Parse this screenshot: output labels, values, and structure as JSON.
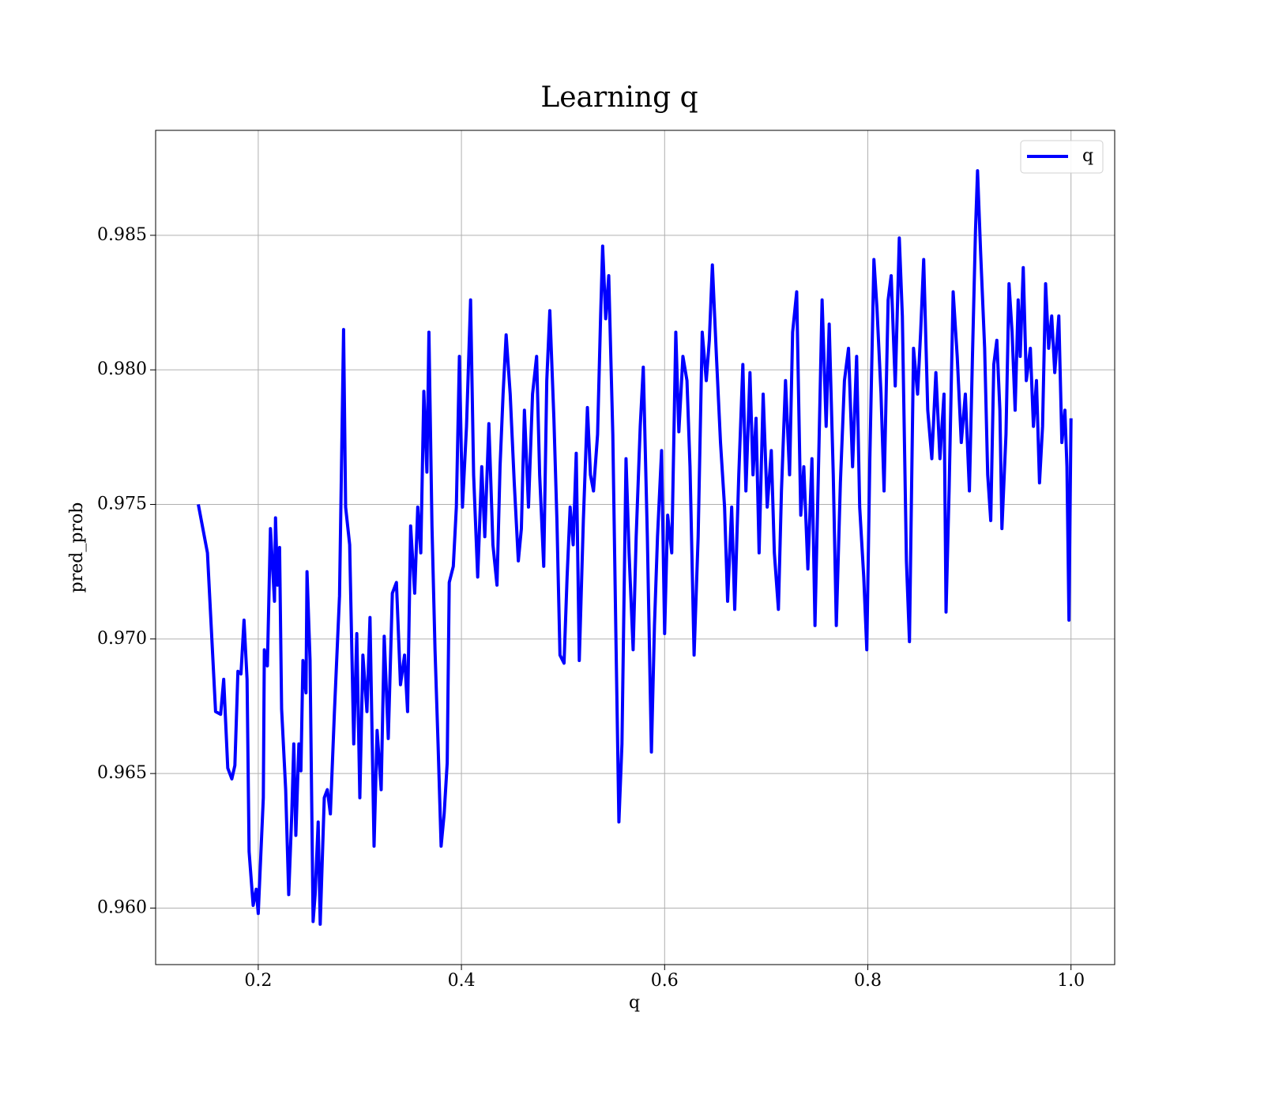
{
  "chart_data": {
    "type": "line",
    "title": "Learning q",
    "xlabel": "q",
    "ylabel": "pred_prob",
    "xlim": [
      0.099,
      1.043
    ],
    "ylim": [
      0.9579,
      0.9889
    ],
    "xticks": [
      0.2,
      0.4,
      0.6,
      0.8,
      {
        "value": 1,
        "label": "1.0"
      }
    ],
    "yticks": [
      {
        "value": 0.96,
        "label": "0.960"
      },
      0.965,
      {
        "value": 0.97,
        "label": "0.970"
      },
      0.975,
      {
        "value": 0.98,
        "label": "0.980"
      },
      0.985
    ],
    "grid": true,
    "legend": "upper right",
    "x": [
      0.141,
      0.15,
      0.158,
      0.163,
      0.166,
      0.17,
      0.174,
      0.177,
      0.18,
      0.183,
      0.186,
      0.189,
      0.191,
      0.195,
      0.198,
      0.2,
      0.205,
      0.206,
      0.209,
      0.212,
      0.216,
      0.217,
      0.219,
      0.221,
      0.223,
      0.227,
      0.23,
      0.233,
      0.235,
      0.237,
      0.24,
      0.242,
      0.244,
      0.247,
      0.248,
      0.251,
      0.254,
      0.256,
      0.259,
      0.261,
      0.265,
      0.268,
      0.271,
      0.275,
      0.28,
      0.284,
      0.286,
      0.29,
      0.294,
      0.297,
      0.3,
      0.303,
      0.307,
      0.31,
      0.314,
      0.317,
      0.321,
      0.324,
      0.328,
      0.332,
      0.336,
      0.34,
      0.344,
      0.347,
      0.35,
      0.354,
      0.357,
      0.36,
      0.363,
      0.366,
      0.368,
      0.371,
      0.374,
      0.377,
      0.38,
      0.383,
      0.386,
      0.388,
      0.392,
      0.395,
      0.398,
      0.401,
      0.405,
      0.409,
      0.412,
      0.416,
      0.42,
      0.423,
      0.427,
      0.431,
      0.435,
      0.438,
      0.441,
      0.444,
      0.448,
      0.452,
      0.456,
      0.459,
      0.462,
      0.466,
      0.47,
      0.474,
      0.477,
      0.481,
      0.484,
      0.487,
      0.491,
      0.494,
      0.497,
      0.501,
      0.504,
      0.507,
      0.51,
      0.513,
      0.516,
      0.52,
      0.524,
      0.527,
      0.53,
      0.534,
      0.537,
      0.539,
      0.542,
      0.545,
      0.549,
      0.552,
      0.555,
      0.558,
      0.562,
      0.565,
      0.569,
      0.572,
      0.576,
      0.579,
      0.583,
      0.587,
      0.59,
      0.593,
      0.597,
      0.6,
      0.603,
      0.607,
      0.611,
      0.614,
      0.618,
      0.622,
      0.625,
      0.629,
      0.633,
      0.637,
      0.641,
      0.644,
      0.647,
      0.651,
      0.655,
      0.659,
      0.662,
      0.666,
      0.669,
      0.673,
      0.677,
      0.68,
      0.684,
      0.687,
      0.69,
      0.693,
      0.697,
      0.701,
      0.705,
      0.708,
      0.712,
      0.715,
      0.719,
      0.723,
      0.726,
      0.73,
      0.734,
      0.737,
      0.741,
      0.745,
      0.748,
      0.752,
      0.755,
      0.759,
      0.762,
      0.766,
      0.769,
      0.773,
      0.777,
      0.781,
      0.785,
      0.789,
      0.792,
      0.796,
      0.799,
      0.802,
      0.806,
      0.809,
      0.813,
      0.816,
      0.82,
      0.823,
      0.827,
      0.831,
      0.834,
      0.838,
      0.841,
      0.845,
      0.849,
      0.852,
      0.855,
      0.859,
      0.863,
      0.867,
      0.871,
      0.875,
      0.877,
      0.88,
      0.884,
      0.888,
      0.892,
      0.896,
      0.9,
      0.903,
      0.906,
      0.908,
      0.911,
      0.915,
      0.918,
      0.921,
      0.924,
      0.927,
      0.93,
      0.932,
      0.936,
      0.939,
      0.942,
      0.945,
      0.948,
      0.95,
      0.953,
      0.956,
      0.96,
      0.963,
      0.966,
      0.969,
      0.972,
      0.975,
      0.978,
      0.981,
      0.984,
      0.988,
      0.991,
      0.994,
      0.996,
      0.998,
      1.0
    ],
    "series": [
      {
        "name": "q",
        "color": "#0000ff",
        "values": [
          0.975,
          0.9732,
          0.9673,
          0.9672,
          0.9685,
          0.9652,
          0.9648,
          0.9653,
          0.9688,
          0.9687,
          0.9707,
          0.9685,
          0.9621,
          0.9601,
          0.9607,
          0.9598,
          0.9641,
          0.9696,
          0.969,
          0.9741,
          0.9714,
          0.9745,
          0.972,
          0.9734,
          0.9674,
          0.9644,
          0.9605,
          0.9635,
          0.9661,
          0.9627,
          0.9661,
          0.9651,
          0.9692,
          0.968,
          0.9725,
          0.9692,
          0.9595,
          0.9605,
          0.9632,
          0.9594,
          0.9641,
          0.9644,
          0.9635,
          0.9673,
          0.9716,
          0.9815,
          0.9749,
          0.9735,
          0.9661,
          0.9702,
          0.9641,
          0.9694,
          0.9673,
          0.9708,
          0.9623,
          0.9666,
          0.9644,
          0.9701,
          0.9663,
          0.9717,
          0.9721,
          0.9683,
          0.9694,
          0.9673,
          0.9742,
          0.9717,
          0.9749,
          0.9732,
          0.9792,
          0.9762,
          0.9814,
          0.9742,
          0.9696,
          0.9661,
          0.9623,
          0.9635,
          0.9654,
          0.9721,
          0.9727,
          0.9749,
          0.9805,
          0.9749,
          0.9779,
          0.9826,
          0.9761,
          0.9723,
          0.9764,
          0.9738,
          0.978,
          0.9735,
          0.972,
          0.9764,
          0.9791,
          0.9813,
          0.9791,
          0.9758,
          0.9729,
          0.9741,
          0.9785,
          0.9749,
          0.9791,
          0.9805,
          0.9761,
          0.9727,
          0.9796,
          0.9822,
          0.9782,
          0.9744,
          0.9694,
          0.9691,
          0.9723,
          0.9749,
          0.9735,
          0.9769,
          0.9692,
          0.9744,
          0.9786,
          0.9761,
          0.9755,
          0.9776,
          0.982,
          0.9846,
          0.9819,
          0.9835,
          0.9776,
          0.9702,
          0.9632,
          0.9661,
          0.9767,
          0.9732,
          0.9696,
          0.9738,
          0.9779,
          0.9801,
          0.9738,
          0.9658,
          0.9705,
          0.9738,
          0.977,
          0.9702,
          0.9746,
          0.9732,
          0.9814,
          0.9777,
          0.9805,
          0.9796,
          0.9764,
          0.9694,
          0.9738,
          0.9814,
          0.9796,
          0.9811,
          0.9839,
          0.9805,
          0.9773,
          0.9749,
          0.9714,
          0.9749,
          0.9711,
          0.9761,
          0.9802,
          0.9755,
          0.9799,
          0.9761,
          0.9782,
          0.9732,
          0.9791,
          0.9749,
          0.977,
          0.9732,
          0.9711,
          0.9755,
          0.9796,
          0.9761,
          0.9814,
          0.9829,
          0.9746,
          0.9764,
          0.9726,
          0.9767,
          0.9705,
          0.9773,
          0.9826,
          0.9779,
          0.9817,
          0.9761,
          0.9705,
          0.9758,
          0.9796,
          0.9808,
          0.9764,
          0.9805,
          0.9749,
          0.9723,
          0.9696,
          0.9767,
          0.9841,
          0.9823,
          0.9791,
          0.9755,
          0.9826,
          0.9835,
          0.9794,
          0.9849,
          0.982,
          0.9729,
          0.9699,
          0.9808,
          0.9791,
          0.9814,
          0.9841,
          0.9785,
          0.9767,
          0.9799,
          0.9767,
          0.9791,
          0.971,
          0.9755,
          0.9829,
          0.9805,
          0.9773,
          0.9791,
          0.9755,
          0.9805,
          0.9852,
          0.9874,
          0.9844,
          0.9808,
          0.9761,
          0.9744,
          0.9802,
          0.9811,
          0.9785,
          0.9741,
          0.9776,
          0.9832,
          0.9814,
          0.9785,
          0.9826,
          0.9805,
          0.9838,
          0.9796,
          0.9808,
          0.9779,
          0.9796,
          0.9758,
          0.9779,
          0.9832,
          0.9808,
          0.982,
          0.9799,
          0.982,
          0.9773,
          0.9785,
          0.9764,
          0.9707,
          0.9782
        ]
      }
    ]
  }
}
